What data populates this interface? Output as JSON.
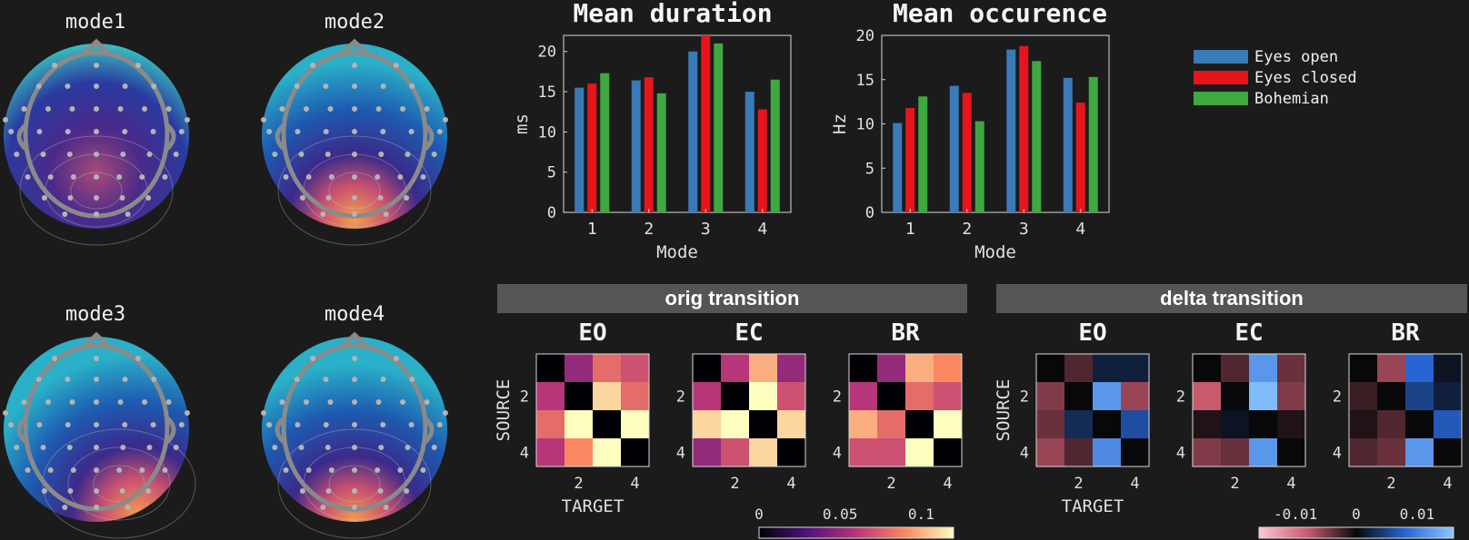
{
  "topomaps": {
    "items": [
      {
        "title": "mode1",
        "accent": "#e87f5a",
        "type": "central"
      },
      {
        "title": "mode2",
        "accent": "#f0a050",
        "type": "posterior"
      },
      {
        "title": "mode3",
        "accent": "#f09850",
        "type": "posterior-right"
      },
      {
        "title": "mode4",
        "accent": "#f0a050",
        "type": "occipital"
      }
    ]
  },
  "chart_data": [
    {
      "type": "bar",
      "title": "Mean duration",
      "xlabel": "Mode",
      "ylabel": "ms",
      "categories": [
        "1",
        "2",
        "3",
        "4"
      ],
      "ylim": [
        0,
        22
      ],
      "yticks": [
        0,
        5,
        10,
        15,
        20
      ],
      "series": [
        {
          "name": "Eyes open",
          "color": "#3a7ab8",
          "values": [
            15.5,
            16.4,
            20,
            15
          ]
        },
        {
          "name": "Eyes closed",
          "color": "#e8141c",
          "values": [
            16,
            16.8,
            22,
            12.8
          ]
        },
        {
          "name": "Bohemian",
          "color": "#3fa840",
          "values": [
            17.3,
            14.8,
            21,
            16.5
          ]
        }
      ]
    },
    {
      "type": "bar",
      "title": "Mean occurence",
      "xlabel": "Mode",
      "ylabel": "Hz",
      "categories": [
        "1",
        "2",
        "3",
        "4"
      ],
      "ylim": [
        0,
        20
      ],
      "yticks": [
        0,
        5,
        10,
        15,
        20
      ],
      "series": [
        {
          "name": "Eyes open",
          "color": "#3a7ab8",
          "values": [
            10.1,
            14.3,
            18.4,
            15.2
          ]
        },
        {
          "name": "Eyes closed",
          "color": "#e8141c",
          "values": [
            11.8,
            13.5,
            18.8,
            12.4
          ]
        },
        {
          "name": "Bohemian",
          "color": "#3fa840",
          "values": [
            13.1,
            10.3,
            17.1,
            15.3
          ]
        }
      ]
    },
    {
      "type": "heatmap",
      "group": "orig transition",
      "matrices": [
        {
          "title": "EO",
          "values": [
            [
              0,
              0.05,
              0.08,
              0.07
            ],
            [
              0.06,
              0,
              0.11,
              0.08
            ],
            [
              0.08,
              0.12,
              0,
              0.13
            ],
            [
              0.06,
              0.09,
              0.13,
              0
            ]
          ]
        },
        {
          "title": "EC",
          "values": [
            [
              0,
              0.06,
              0.1,
              0.05
            ],
            [
              0.06,
              0,
              0.13,
              0.07
            ],
            [
              0.11,
              0.12,
              0,
              0.11
            ],
            [
              0.05,
              0.07,
              0.11,
              0
            ]
          ]
        },
        {
          "title": "BR",
          "values": [
            [
              0,
              0.05,
              0.1,
              0.09
            ],
            [
              0.06,
              0,
              0.08,
              0.07
            ],
            [
              0.1,
              0.08,
              0,
              0.13
            ],
            [
              0.07,
              0.07,
              0.13,
              0
            ]
          ]
        }
      ],
      "xlabel": "TARGET",
      "ylabel": "SOURCE",
      "ticks": [
        "2",
        "4"
      ],
      "colorbar": {
        "range": [
          0,
          0.12
        ],
        "ticks": [
          "0",
          "0.05",
          "0.1"
        ]
      }
    },
    {
      "type": "heatmap",
      "group": "delta transition",
      "matrices": [
        {
          "title": "EO",
          "values": [
            [
              0,
              -0.003,
              0.002,
              0.002
            ],
            [
              -0.005,
              0,
              0.012,
              -0.006
            ],
            [
              -0.004,
              0.003,
              0,
              0.006
            ],
            [
              -0.006,
              -0.003,
              0.011,
              0
            ]
          ]
        },
        {
          "title": "EC",
          "values": [
            [
              0,
              -0.003,
              0.012,
              -0.004
            ],
            [
              -0.008,
              0,
              0.015,
              -0.005
            ],
            [
              -0.001,
              0.001,
              0,
              -0.001
            ],
            [
              -0.005,
              -0.004,
              0.012,
              0
            ]
          ]
        },
        {
          "title": "BR",
          "values": [
            [
              0,
              -0.006,
              0.008,
              0.001
            ],
            [
              -0.002,
              0,
              0.005,
              0.002
            ],
            [
              -0.001,
              -0.003,
              0,
              0.007
            ],
            [
              -0.003,
              -0.004,
              0.012,
              0
            ]
          ]
        }
      ],
      "xlabel": "TARGET",
      "ylabel": "SOURCE",
      "ticks": [
        "2",
        "4"
      ],
      "colorbar": {
        "range": [
          -0.016,
          0.016
        ],
        "ticks": [
          "-0.01",
          "0",
          "0.01"
        ]
      }
    }
  ],
  "legend": {
    "items": [
      "Eyes open",
      "Eyes closed",
      "Bohemian"
    ]
  }
}
